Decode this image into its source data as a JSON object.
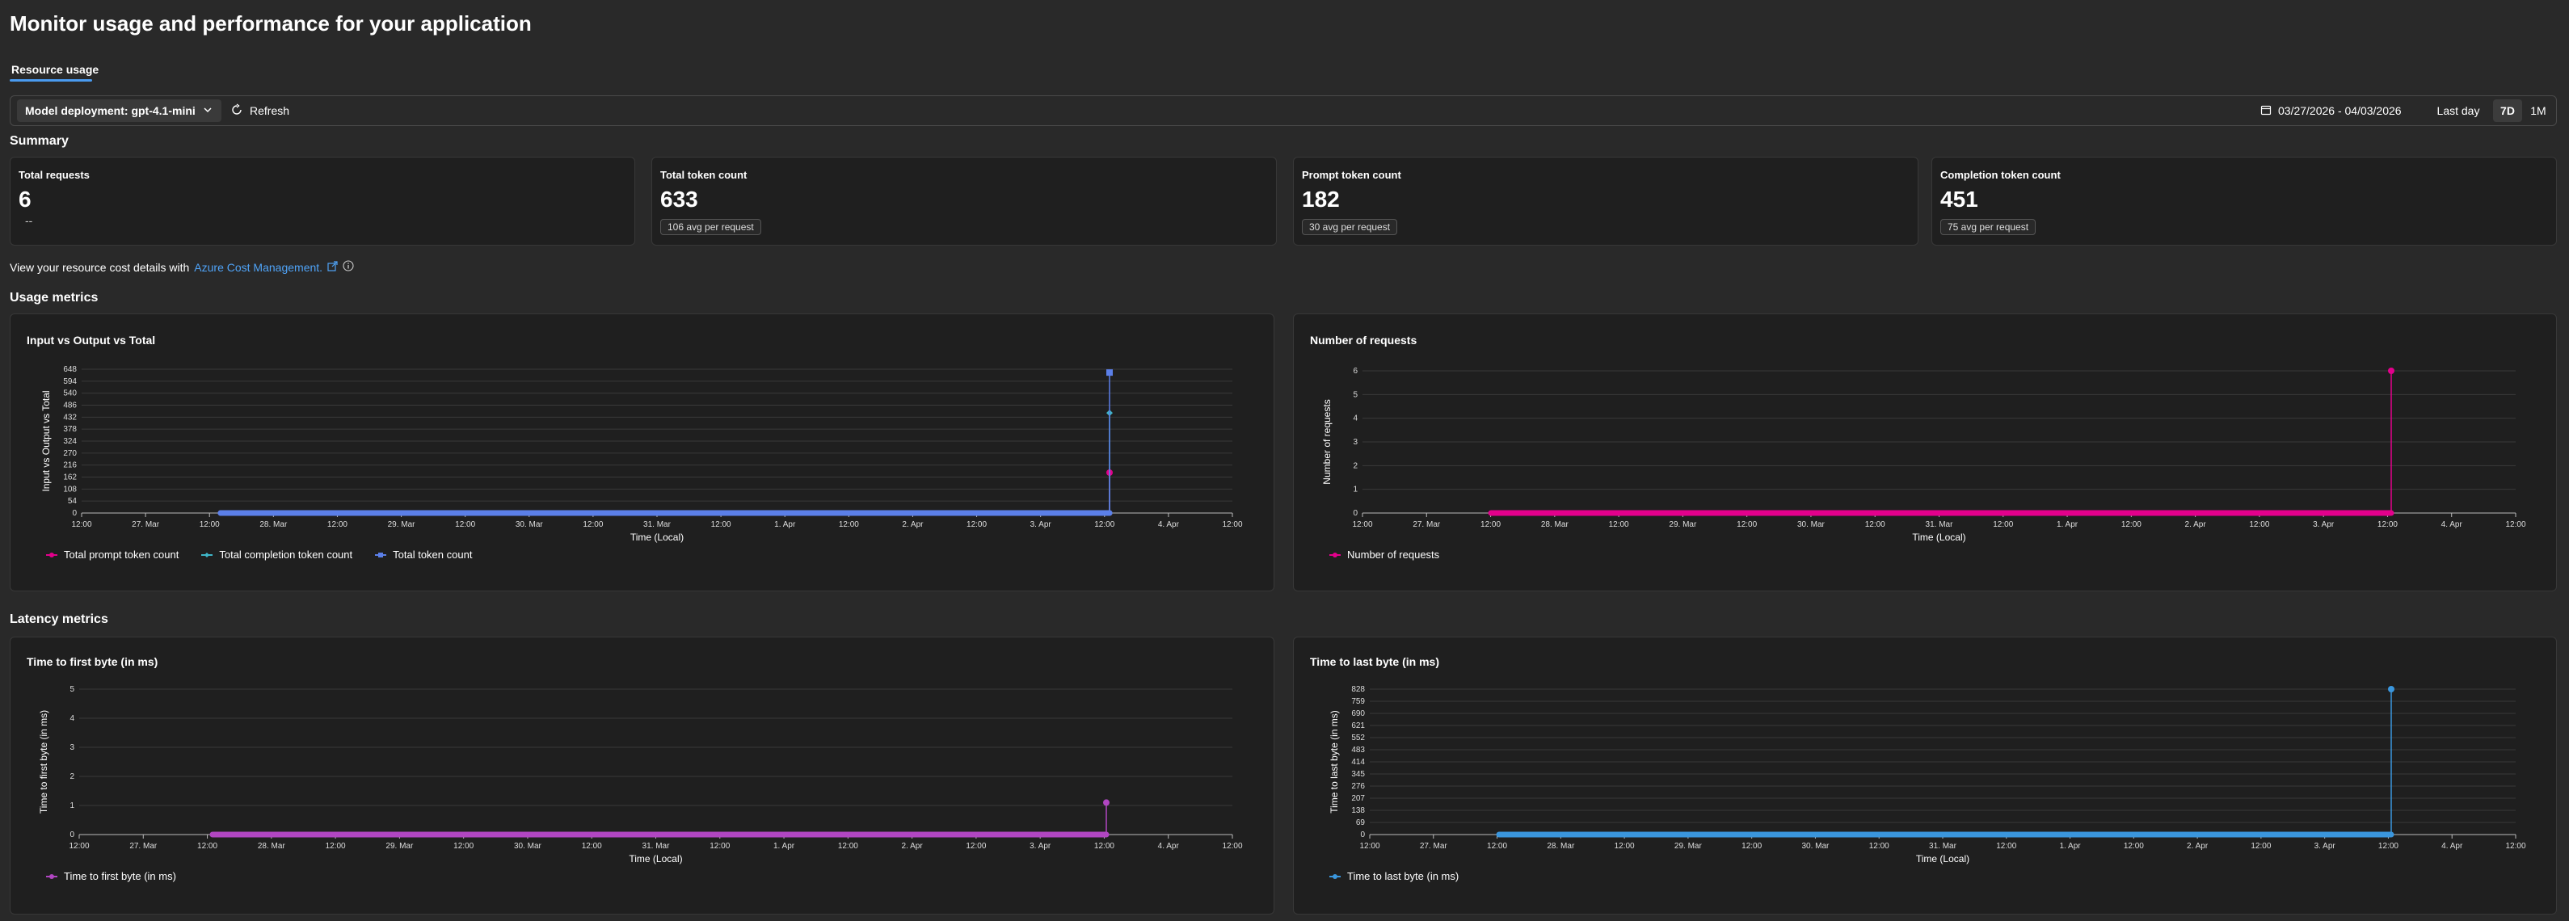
{
  "page": {
    "title": "Monitor usage and performance for your application",
    "tab": "Resource usage"
  },
  "toolbar": {
    "deployment_label": "Model deployment: gpt-4.1-mini",
    "refresh_label": "Refresh",
    "date_range": "03/27/2026 - 04/03/2026",
    "ranges": [
      "Last day",
      "7D",
      "1M"
    ],
    "active_range": "7D"
  },
  "summary": {
    "title": "Summary",
    "cards": [
      {
        "label": "Total requests",
        "value": "6",
        "sub": "--",
        "badge": ""
      },
      {
        "label": "Total token count",
        "value": "633",
        "sub": "",
        "badge": "106 avg per request"
      },
      {
        "label": "Prompt token count",
        "value": "182",
        "sub": "",
        "badge": "30 avg per request"
      },
      {
        "label": "Completion token count",
        "value": "451",
        "sub": "",
        "badge": "75 avg per request"
      }
    ]
  },
  "cost": {
    "text": "View your resource cost details with",
    "link": "Azure Cost Management."
  },
  "usage": {
    "title": "Usage metrics"
  },
  "latency": {
    "title": "Latency metrics"
  },
  "colors": {
    "prompt": "#e3008c",
    "completion": "#3fb6c8",
    "total": "#5b7fe8",
    "requests": "#e3008c",
    "ttfb": "#b146c2",
    "ttlb": "#3a96dd"
  },
  "chart_data": [
    {
      "type": "line",
      "title": "Input vs Output vs Total",
      "xlabel": "Time (Local)",
      "ylabel": "Input vs Output vs Total",
      "x_ticks": [
        "12:00",
        "27. Mar",
        "12:00",
        "28. Mar",
        "12:00",
        "29. Mar",
        "12:00",
        "30. Mar",
        "12:00",
        "31. Mar",
        "12:00",
        "1. Apr",
        "12:00",
        "2. Apr",
        "12:00",
        "3. Apr",
        "12:00",
        "4. Apr",
        "12:00"
      ],
      "y_ticks": [
        "0",
        "54",
        "108",
        "162",
        "216",
        "270",
        "324",
        "378",
        "432",
        "486",
        "540",
        "594",
        "648"
      ],
      "ylim": [
        0,
        648
      ],
      "series": [
        {
          "name": "Total prompt token count",
          "values": [
            0,
            0,
            182
          ]
        },
        {
          "name": "Total completion token count",
          "values": [
            0,
            0,
            451
          ]
        },
        {
          "name": "Total token count",
          "values": [
            0,
            0,
            633
          ]
        }
      ],
      "legend": [
        "Total prompt token count",
        "Total completion token count",
        "Total token count"
      ]
    },
    {
      "type": "line",
      "title": "Number of requests",
      "xlabel": "Time (Local)",
      "ylabel": "Number of requests",
      "x_ticks": [
        "12:00",
        "27. Mar",
        "12:00",
        "28. Mar",
        "12:00",
        "29. Mar",
        "12:00",
        "30. Mar",
        "12:00",
        "31. Mar",
        "12:00",
        "1. Apr",
        "12:00",
        "2. Apr",
        "12:00",
        "3. Apr",
        "12:00",
        "4. Apr",
        "12:00"
      ],
      "y_ticks": [
        "0",
        "1",
        "2",
        "3",
        "4",
        "5",
        "6"
      ],
      "ylim": [
        0,
        6
      ],
      "series": [
        {
          "name": "Number of requests",
          "values": [
            0,
            0,
            6
          ]
        }
      ],
      "legend": [
        "Number of requests"
      ]
    },
    {
      "type": "line",
      "title": "Time to first byte (in ms)",
      "xlabel": "Time (Local)",
      "ylabel": "Time to first byte (in ms)",
      "x_ticks": [
        "12:00",
        "27. Mar",
        "12:00",
        "28. Mar",
        "12:00",
        "29. Mar",
        "12:00",
        "30. Mar",
        "12:00",
        "31. Mar",
        "12:00",
        "1. Apr",
        "12:00",
        "2. Apr",
        "12:00",
        "3. Apr",
        "12:00",
        "4. Apr",
        "12:00"
      ],
      "y_ticks": [
        "0",
        "1",
        "2",
        "3",
        "4",
        "5"
      ],
      "ylim": [
        0,
        5
      ],
      "series": [
        {
          "name": "Time to first byte (in ms)",
          "values": [
            0,
            0,
            1.1
          ]
        }
      ],
      "legend": [
        "Time to first byte (in ms)"
      ]
    },
    {
      "type": "line",
      "title": "Time to last byte (in ms)",
      "xlabel": "Time (Local)",
      "ylabel": "Time to last byte (in ms)",
      "x_ticks": [
        "12:00",
        "27. Mar",
        "12:00",
        "28. Mar",
        "12:00",
        "29. Mar",
        "12:00",
        "30. Mar",
        "12:00",
        "31. Mar",
        "12:00",
        "1. Apr",
        "12:00",
        "2. Apr",
        "12:00",
        "3. Apr",
        "12:00",
        "4. Apr",
        "12:00"
      ],
      "y_ticks": [
        "0",
        "69",
        "138",
        "207",
        "276",
        "345",
        "414",
        "483",
        "552",
        "621",
        "690",
        "759",
        "828"
      ],
      "ylim": [
        0,
        828
      ],
      "series": [
        {
          "name": "Time to last byte (in ms)",
          "values": [
            0,
            0,
            828
          ]
        }
      ],
      "legend": [
        "Time to last byte (in ms)"
      ]
    }
  ]
}
